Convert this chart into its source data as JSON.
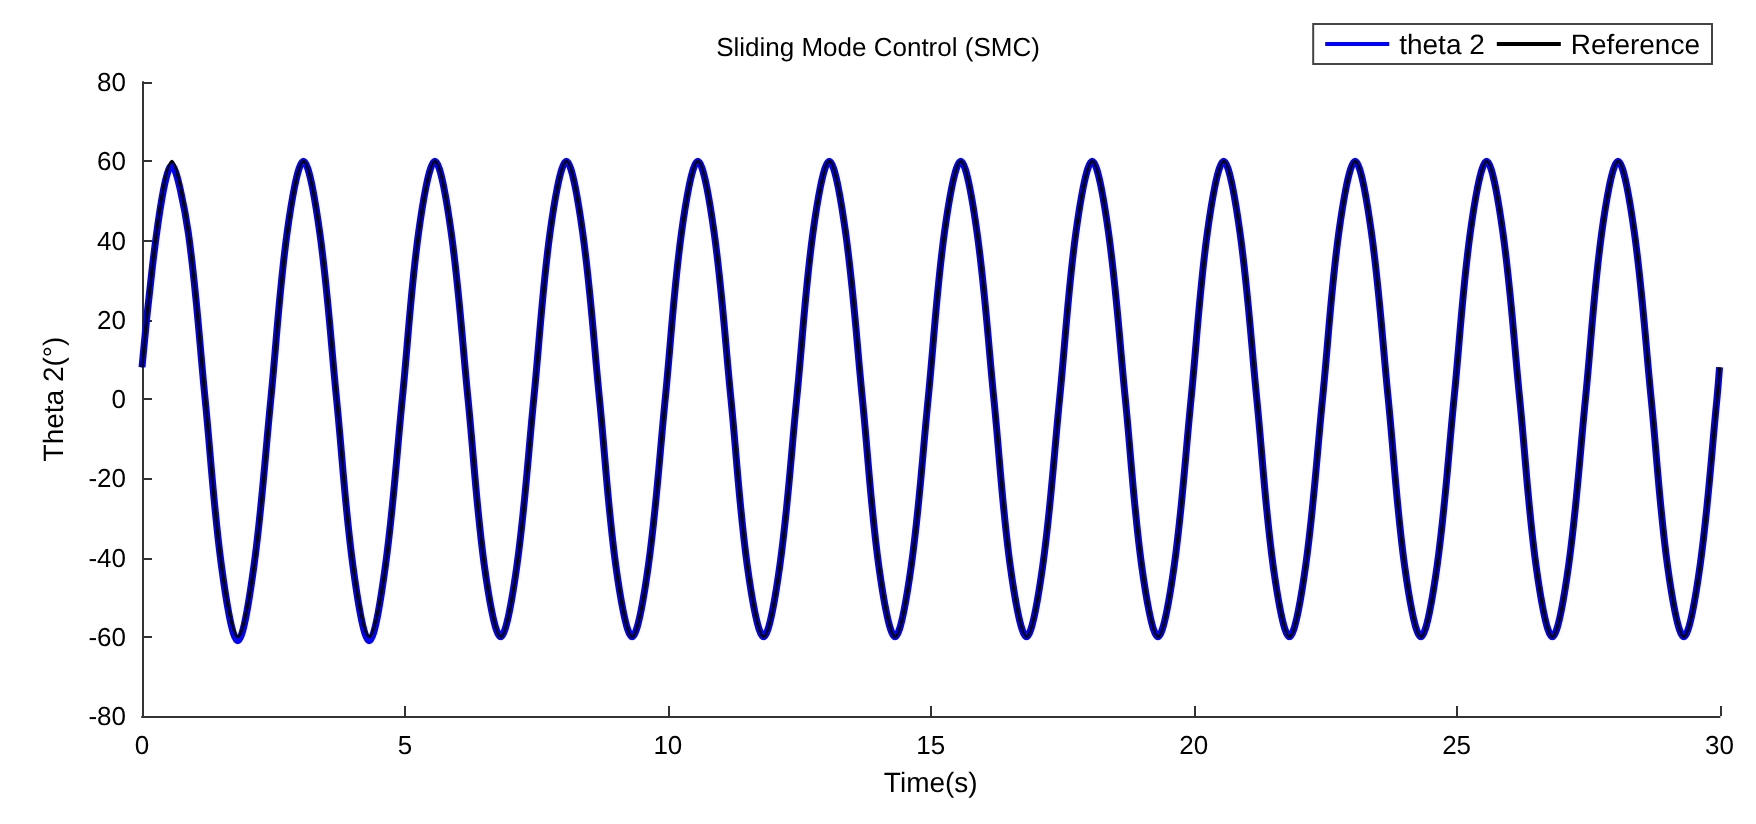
{
  "chart_data": {
    "type": "line",
    "title": "Sliding Mode Control (SMC)",
    "xlabel": "Time(s)",
    "ylabel": "Theta 2(°)",
    "x": [
      0,
      0.57,
      0.88,
      1.2,
      1.51,
      1.82,
      2.13,
      2.45,
      2.76,
      3.07,
      3.38,
      3.7,
      4.01,
      4.32,
      4.63,
      4.95,
      5.26,
      5.57,
      5.88,
      6.2,
      6.51,
      6.82,
      7.13,
      7.45,
      7.76,
      8.07,
      8.38,
      8.7,
      9.01,
      9.32,
      9.63,
      9.95,
      10.26,
      10.57,
      10.88,
      11.2,
      11.51,
      11.82,
      12.13,
      12.45,
      12.76,
      13.07,
      13.38,
      13.7,
      14.01,
      14.32,
      14.63,
      14.95,
      15.26,
      15.57,
      15.88,
      16.2,
      16.51,
      16.82,
      17.13,
      17.45,
      17.76,
      18.07,
      18.38,
      18.7,
      19.01,
      19.32,
      19.63,
      19.95,
      20.26,
      20.57,
      20.88,
      21.2,
      21.51,
      21.82,
      22.13,
      22.45,
      22.76,
      23.07,
      23.38,
      23.7,
      24.01,
      24.32,
      24.63,
      24.95,
      25.26,
      25.57,
      25.88,
      26.2,
      26.51,
      26.82,
      27.13,
      27.45,
      27.76,
      28.07,
      28.38,
      28.7,
      29.01,
      29.32,
      29.63,
      29.95,
      30
    ],
    "series": [
      {
        "name": "theta 2",
        "color": "#0000ff",
        "values": [
          8,
          59,
          42,
          0,
          -42,
          -61,
          -42,
          0,
          42,
          60,
          42,
          0,
          -42,
          -61,
          -42,
          0,
          42,
          60,
          42,
          0,
          -42,
          -60,
          -42,
          0,
          42,
          60,
          42,
          0,
          -42,
          -60,
          -42,
          0,
          42,
          60,
          42,
          0,
          -42,
          -60,
          -42,
          0,
          42,
          60,
          42,
          0,
          -42,
          -60,
          -42,
          0,
          42,
          60,
          42,
          0,
          -42,
          -60,
          -42,
          0,
          42,
          60,
          42,
          0,
          -42,
          -60,
          -42,
          0,
          42,
          60,
          42,
          0,
          -42,
          -60,
          -42,
          0,
          42,
          60,
          42,
          0,
          -42,
          -60,
          -42,
          0,
          42,
          60,
          42,
          0,
          -42,
          -60,
          -42,
          0,
          42,
          60,
          42,
          0,
          -42,
          -60,
          -42,
          0,
          8
        ]
      },
      {
        "name": "Reference",
        "color": "#000000",
        "values": [
          8,
          60,
          42,
          0,
          -42,
          -60,
          -42,
          0,
          42,
          60,
          42,
          0,
          -42,
          -60,
          -42,
          0,
          42,
          60,
          42,
          0,
          -42,
          -60,
          -42,
          0,
          42,
          60,
          42,
          0,
          -42,
          -60,
          -42,
          0,
          42,
          60,
          42,
          0,
          -42,
          -60,
          -42,
          0,
          42,
          60,
          42,
          0,
          -42,
          -60,
          -42,
          0,
          42,
          60,
          42,
          0,
          -42,
          -60,
          -42,
          0,
          42,
          60,
          42,
          0,
          -42,
          -60,
          -42,
          0,
          42,
          60,
          42,
          0,
          -42,
          -60,
          -42,
          0,
          42,
          60,
          42,
          0,
          -42,
          -60,
          -42,
          0,
          42,
          60,
          42,
          0,
          -42,
          -60,
          -42,
          0,
          42,
          60,
          42,
          0,
          -42,
          -60,
          -42,
          0,
          8
        ]
      }
    ],
    "xlim": [
      0,
      30
    ],
    "xticks": [
      0,
      5,
      10,
      15,
      20,
      25,
      30
    ],
    "ylim": [
      -80,
      80
    ],
    "yticks": [
      -80,
      -60,
      -40,
      -20,
      0,
      20,
      40,
      60,
      80
    ],
    "legend": "top right",
    "line_style": "solid"
  }
}
